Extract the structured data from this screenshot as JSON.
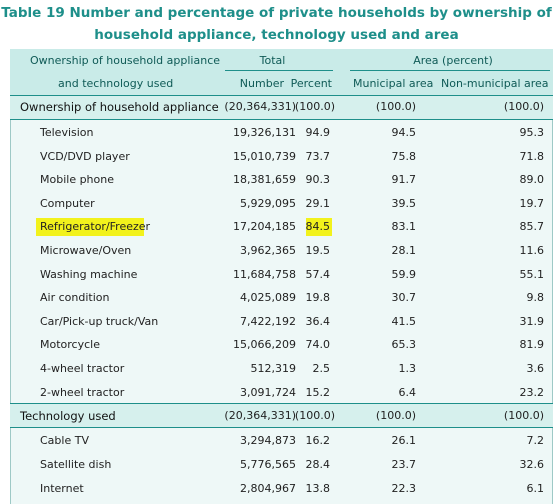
{
  "title": {
    "line1": "Table 19  Number and percentage of private households by ownership of",
    "line2": "household appliance, technology used and area"
  },
  "header": {
    "col1_line1": "Ownership of household appliance",
    "col1_line2": "and technology used",
    "total": "Total",
    "area": "Area (percent)",
    "number": "Number",
    "percent": "Percent",
    "municipal": "Municipal area",
    "non_municipal": "Non-municipal area"
  },
  "sections": [
    {
      "label": "Ownership of household appliance",
      "number": "(20,364,331)",
      "percent": "(100.0)",
      "municipal": "(100.0)",
      "non_municipal": "(100.0)",
      "rows": [
        {
          "label": "Television",
          "number": "19,326,131",
          "percent": "94.9",
          "municipal": "94.5",
          "non_municipal": "95.3"
        },
        {
          "label": "VCD/DVD player",
          "number": "15,010,739",
          "percent": "73.7",
          "municipal": "75.8",
          "non_municipal": "71.8"
        },
        {
          "label": "Mobile phone",
          "number": "18,381,659",
          "percent": "90.3",
          "municipal": "91.7",
          "non_municipal": "89.0"
        },
        {
          "label": "Computer",
          "number": "5,929,095",
          "percent": "29.1",
          "municipal": "39.5",
          "non_municipal": "19.7"
        },
        {
          "label": "Refrigerator/Freezer",
          "number": "17,204,185",
          "percent": "84.5",
          "municipal": "83.1",
          "non_municipal": "85.7",
          "highlight": true
        },
        {
          "label": "Microwave/Oven",
          "number": "3,962,365",
          "percent": "19.5",
          "municipal": "28.1",
          "non_municipal": "11.6"
        },
        {
          "label": "Washing machine",
          "number": "11,684,758",
          "percent": "57.4",
          "municipal": "59.9",
          "non_municipal": "55.1"
        },
        {
          "label": "Air condition",
          "number": "4,025,089",
          "percent": "19.8",
          "municipal": "30.7",
          "non_municipal": "9.8"
        },
        {
          "label": "Car/Pick-up truck/Van",
          "number": "7,422,192",
          "percent": "36.4",
          "municipal": "41.5",
          "non_municipal": "31.9"
        },
        {
          "label": "Motorcycle",
          "number": "15,066,209",
          "percent": "74.0",
          "municipal": "65.3",
          "non_municipal": "81.9"
        },
        {
          "label": "4-wheel tractor",
          "number": "512,319",
          "percent": "2.5",
          "municipal": "1.3",
          "non_municipal": "3.6"
        },
        {
          "label": "2-wheel tractor",
          "number": "3,091,724",
          "percent": "15.2",
          "municipal": "6.4",
          "non_municipal": "23.2"
        }
      ]
    },
    {
      "label": "Technology used",
      "number": "(20,364,331)",
      "percent": "(100.0)",
      "municipal": "(100.0)",
      "non_municipal": "(100.0)",
      "rows": [
        {
          "label": "Cable TV",
          "number": "3,294,873",
          "percent": "16.2",
          "municipal": "26.1",
          "non_municipal": "7.2"
        },
        {
          "label": "Satellite dish",
          "number": "5,776,565",
          "percent": "28.4",
          "municipal": "23.7",
          "non_municipal": "32.6"
        },
        {
          "label": "Internet",
          "number": "2,804,967",
          "percent": "13.8",
          "municipal": "22.3",
          "non_municipal": "6.1"
        }
      ]
    }
  ],
  "colors": {
    "title": "#1e8f8a",
    "header_bg": "#c9ebe8",
    "body_bg": "#eef8f7",
    "rule": "#1e8f8a",
    "highlight": "#f2f21c"
  }
}
